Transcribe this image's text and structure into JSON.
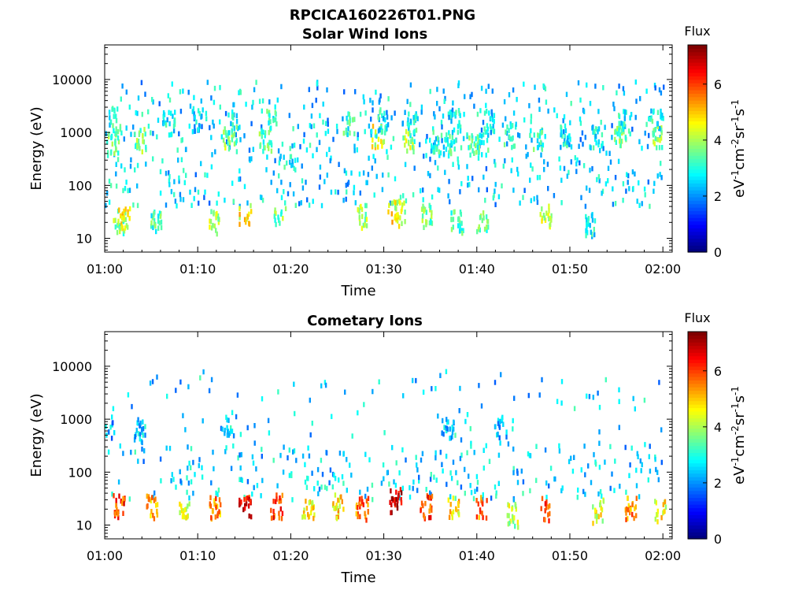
{
  "figure": {
    "title": "RPCICA160226T01.PNG"
  },
  "chart_data": [
    {
      "type": "heatmap",
      "title": "Solar Wind Ions",
      "xlabel": "Time",
      "ylabel": "Energy (eV)",
      "x_ticks": [
        "01:00",
        "01:10",
        "01:20",
        "01:30",
        "01:40",
        "01:50",
        "02:00"
      ],
      "y_ticks": [
        "10",
        "100",
        "1000",
        "10000"
      ],
      "y_scale": "log",
      "ylim": [
        5.5,
        45000
      ],
      "xlim_minutes": [
        0,
        61
      ],
      "colorbar": {
        "title": "Flux",
        "label": "eV-1cm-2sr-1s-1",
        "ticks": [
          "0",
          "2",
          "4",
          "6"
        ],
        "range": [
          0,
          7.4
        ],
        "colormap": "jet"
      },
      "description_of_pattern": "sparse speckle; dense patches near 500-2000 eV recurring roughly every 3-4 minutes; scattered low-energy (10-40 eV) patches",
      "clusters": [
        {
          "t": 0.8,
          "e": 650,
          "v": 3.6
        },
        {
          "t": 1.0,
          "e": 1800,
          "v": 3.2
        },
        {
          "t": 3.7,
          "e": 700,
          "v": 3.8
        },
        {
          "t": 6.8,
          "e": 1500,
          "v": 3.0
        },
        {
          "t": 10.0,
          "e": 1700,
          "v": 2.6
        },
        {
          "t": 13.3,
          "e": 750,
          "v": 4.0
        },
        {
          "t": 13.8,
          "e": 1500,
          "v": 3.2
        },
        {
          "t": 17.2,
          "e": 700,
          "v": 3.6
        },
        {
          "t": 17.8,
          "e": 1600,
          "v": 3.4
        },
        {
          "t": 19.8,
          "e": 350,
          "v": 3.0
        },
        {
          "t": 26.2,
          "e": 1500,
          "v": 3.2
        },
        {
          "t": 29.3,
          "e": 800,
          "v": 4.6
        },
        {
          "t": 29.8,
          "e": 1600,
          "v": 3.0
        },
        {
          "t": 32.6,
          "e": 700,
          "v": 4.2
        },
        {
          "t": 33.0,
          "e": 1400,
          "v": 3.0
        },
        {
          "t": 35.5,
          "e": 600,
          "v": 3.0
        },
        {
          "t": 37.0,
          "e": 600,
          "v": 3.2
        },
        {
          "t": 37.5,
          "e": 1600,
          "v": 2.8
        },
        {
          "t": 39.5,
          "e": 550,
          "v": 3.4
        },
        {
          "t": 40.5,
          "e": 700,
          "v": 3.2
        },
        {
          "t": 41.2,
          "e": 1600,
          "v": 2.8
        },
        {
          "t": 43.5,
          "e": 850,
          "v": 3.2
        },
        {
          "t": 46.5,
          "e": 750,
          "v": 3.2
        },
        {
          "t": 49.5,
          "e": 850,
          "v": 3.0
        },
        {
          "t": 52.8,
          "e": 750,
          "v": 3.0
        },
        {
          "t": 55.3,
          "e": 900,
          "v": 3.6
        },
        {
          "t": 55.7,
          "e": 1700,
          "v": 3.0
        },
        {
          "t": 59.2,
          "e": 850,
          "v": 3.8
        },
        {
          "t": 59.2,
          "e": 1800,
          "v": 3.0
        },
        {
          "t": 1.5,
          "e": 20,
          "v": 3.8
        },
        {
          "t": 2.0,
          "e": 25,
          "v": 4.6
        },
        {
          "t": 5.5,
          "e": 20,
          "v": 3.4
        },
        {
          "t": 11.8,
          "e": 20,
          "v": 4.2
        },
        {
          "t": 15.0,
          "e": 25,
          "v": 4.8
        },
        {
          "t": 18.8,
          "e": 28,
          "v": 3.8
        },
        {
          "t": 27.5,
          "e": 25,
          "v": 4.0
        },
        {
          "t": 31.0,
          "e": 28,
          "v": 4.8
        },
        {
          "t": 31.6,
          "e": 30,
          "v": 4.4
        },
        {
          "t": 34.5,
          "e": 25,
          "v": 3.8
        },
        {
          "t": 37.8,
          "e": 20,
          "v": 3.4
        },
        {
          "t": 40.5,
          "e": 20,
          "v": 3.6
        },
        {
          "t": 47.3,
          "e": 25,
          "v": 4.2
        },
        {
          "t": 52.2,
          "e": 18,
          "v": 3.0
        }
      ]
    },
    {
      "type": "heatmap",
      "title": "Cometary Ions",
      "xlabel": "Time",
      "ylabel": "Energy (eV)",
      "x_ticks": [
        "01:00",
        "01:10",
        "01:20",
        "01:30",
        "01:40",
        "01:50",
        "02:00"
      ],
      "y_ticks": [
        "10",
        "100",
        "1000",
        "10000"
      ],
      "y_scale": "log",
      "ylim": [
        5.5,
        45000
      ],
      "xlim_minutes": [
        0,
        61
      ],
      "colorbar": {
        "title": "Flux",
        "label": "eV-1cm-2sr-1s-1",
        "ticks": [
          "0",
          "2",
          "4",
          "6"
        ],
        "range": [
          0,
          7.4
        ],
        "colormap": "jet"
      },
      "description_of_pattern": "intense patches at 10-40 eV recurring every ~3-4 minutes; scattered speckle 40-300 eV; sparse high-energy dots",
      "clusters": [
        {
          "t": 0.3,
          "e": 700,
          "v": 2.4
        },
        {
          "t": 3.7,
          "e": 600,
          "v": 2.6
        },
        {
          "t": 13.2,
          "e": 800,
          "v": 2.8
        },
        {
          "t": 36.8,
          "e": 700,
          "v": 2.6
        },
        {
          "t": 42.5,
          "e": 700,
          "v": 2.4
        },
        {
          "t": 1.5,
          "e": 22,
          "v": 6.2
        },
        {
          "t": 5.0,
          "e": 22,
          "v": 5.4
        },
        {
          "t": 8.5,
          "e": 15,
          "v": 4.6
        },
        {
          "t": 11.8,
          "e": 20,
          "v": 5.6
        },
        {
          "t": 15.0,
          "e": 22,
          "v": 6.6
        },
        {
          "t": 18.4,
          "e": 22,
          "v": 6.2
        },
        {
          "t": 21.8,
          "e": 18,
          "v": 4.8
        },
        {
          "t": 25.0,
          "e": 22,
          "v": 5.0
        },
        {
          "t": 27.6,
          "e": 20,
          "v": 5.8
        },
        {
          "t": 31.2,
          "e": 28,
          "v": 7.0
        },
        {
          "t": 34.5,
          "e": 22,
          "v": 6.2
        },
        {
          "t": 37.5,
          "e": 20,
          "v": 5.0
        },
        {
          "t": 40.5,
          "e": 20,
          "v": 5.8
        },
        {
          "t": 43.8,
          "e": 15,
          "v": 4.2
        },
        {
          "t": 47.3,
          "e": 20,
          "v": 6.2
        },
        {
          "t": 53.0,
          "e": 18,
          "v": 4.6
        },
        {
          "t": 56.5,
          "e": 20,
          "v": 5.6
        },
        {
          "t": 59.7,
          "e": 18,
          "v": 4.8
        }
      ]
    }
  ]
}
